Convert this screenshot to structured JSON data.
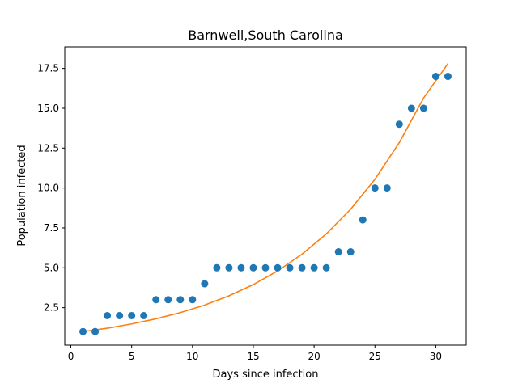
{
  "chart_data": {
    "type": "scatter",
    "title": "Barnwell,South Carolina",
    "xlabel": "Days since infection",
    "ylabel": "Population infected",
    "xlim": [
      -0.5,
      32.5
    ],
    "ylim": [
      0.15,
      18.85
    ],
    "xticks": [
      0,
      5,
      10,
      15,
      20,
      25,
      30
    ],
    "xtick_labels": [
      "0",
      "5",
      "10",
      "15",
      "20",
      "25",
      "30"
    ],
    "yticks": [
      2.5,
      5.0,
      7.5,
      10.0,
      12.5,
      15.0,
      17.5
    ],
    "ytick_labels": [
      "2.5",
      "5.0",
      "7.5",
      "10.0",
      "12.5",
      "15.0",
      "17.5"
    ],
    "grid": false,
    "legend": "none",
    "series": [
      {
        "kind": "scatter",
        "color": "#1f77b4",
        "x": [
          1,
          2,
          3,
          4,
          5,
          6,
          7,
          8,
          9,
          10,
          11,
          12,
          13,
          14,
          15,
          16,
          17,
          18,
          19,
          20,
          21,
          22,
          23,
          24,
          25,
          26,
          27,
          28,
          29,
          30,
          31
        ],
        "y": [
          1,
          1,
          2,
          2,
          2,
          2,
          3,
          3,
          3,
          3,
          4,
          5,
          5,
          5,
          5,
          5,
          5,
          5,
          5,
          5,
          5,
          6,
          6,
          8,
          10,
          10,
          14,
          15,
          15,
          17,
          17
        ]
      },
      {
        "kind": "line",
        "color": "#ff7f0e",
        "x": [
          1,
          3,
          5,
          7,
          9,
          11,
          13,
          15,
          17,
          19,
          21,
          23,
          25,
          27,
          29,
          31
        ],
        "y": [
          1.0,
          1.21,
          1.48,
          1.8,
          2.19,
          2.66,
          3.24,
          3.95,
          4.8,
          5.85,
          7.12,
          8.67,
          10.55,
          12.85,
          15.64,
          17.8
        ]
      }
    ]
  }
}
